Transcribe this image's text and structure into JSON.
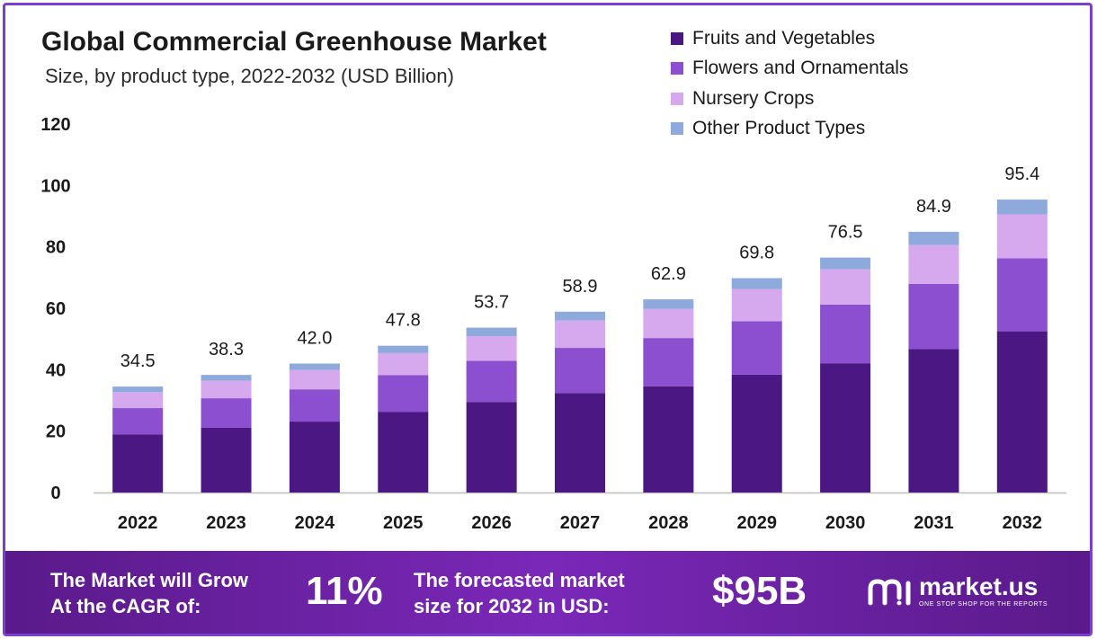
{
  "header": {
    "title": "Global Commercial Greenhouse Market",
    "subtitle": "Size, by product type, 2022-2032 (USD Billion)"
  },
  "legend": {
    "items": [
      {
        "label": "Fruits and Vegetables",
        "color": "#4b1782"
      },
      {
        "label": "Flowers and Ornamentals",
        "color": "#8b4fd0"
      },
      {
        "label": "Nursery Crops",
        "color": "#d6a8ee"
      },
      {
        "label": "Other Product Types",
        "color": "#8ea9dc"
      }
    ]
  },
  "chart_data": {
    "type": "bar",
    "stacked": true,
    "title": "Global Commercial Greenhouse Market",
    "subtitle": "Size, by product type, 2022-2032 (USD Billion)",
    "xlabel": "",
    "ylabel": "",
    "ylim": [
      0,
      120
    ],
    "yticks": [
      0,
      20,
      40,
      60,
      80,
      100,
      120
    ],
    "grid": false,
    "legend_position": "top-right",
    "categories": [
      "2022",
      "2023",
      "2024",
      "2025",
      "2026",
      "2027",
      "2028",
      "2029",
      "2030",
      "2031",
      "2032"
    ],
    "series": [
      {
        "name": "Fruits and Vegetables",
        "color": "#4b1782",
        "values": [
          18.9,
          21.1,
          23.1,
          26.3,
          29.5,
          32.4,
          34.6,
          38.4,
          42.1,
          46.7,
          52.5
        ]
      },
      {
        "name": "Flowers and Ornamentals",
        "color": "#8b4fd0",
        "values": [
          8.6,
          9.6,
          10.5,
          11.9,
          13.4,
          14.7,
          15.7,
          17.4,
          19.1,
          21.2,
          23.8
        ]
      },
      {
        "name": "Nursery Crops",
        "color": "#d6a8ee",
        "values": [
          5.2,
          5.7,
          6.3,
          7.2,
          8.0,
          8.9,
          9.5,
          10.5,
          11.5,
          12.7,
          14.3
        ]
      },
      {
        "name": "Other Product Types",
        "color": "#8ea9dc",
        "values": [
          1.8,
          1.9,
          2.1,
          2.4,
          2.8,
          2.9,
          3.1,
          3.5,
          3.8,
          4.3,
          4.8
        ]
      }
    ],
    "totals": [
      "34.5",
      "38.3",
      "42.0",
      "47.8",
      "53.7",
      "58.9",
      "62.9",
      "69.8",
      "76.5",
      "84.9",
      "95.4"
    ]
  },
  "banner": {
    "cagr_label_1": "The Market will Grow",
    "cagr_label_2": "At the CAGR of:",
    "cagr_value": "11%",
    "forecast_label_1": "The forecasted market",
    "forecast_label_2": "size for 2032 in USD:",
    "forecast_value": "$95B",
    "brand_name": "market.us",
    "brand_tagline": "ONE STOP SHOP FOR THE REPORTS"
  }
}
